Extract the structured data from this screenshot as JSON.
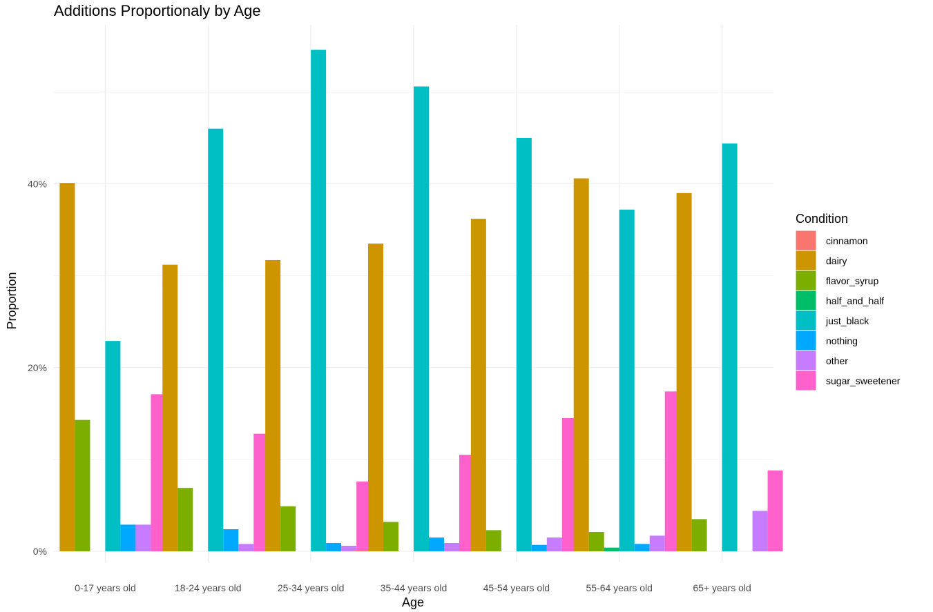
{
  "chart_data": {
    "type": "bar",
    "title": "Additions Proportionaly by Age",
    "xlabel": "Age",
    "ylabel": "Proportion",
    "ylim": [
      0,
      0.55
    ],
    "yticks": [
      0,
      0.2,
      0.4
    ],
    "ytick_labels": [
      "0%",
      "20%",
      "40%"
    ],
    "grid": true,
    "legend_title": "Condition",
    "legend_position": "right",
    "categories": [
      "0-17 years old",
      "18-24 years old",
      "25-34 years old",
      "35-44 years old",
      "45-54 years old",
      "55-64 years old",
      "65+ years old"
    ],
    "series": [
      {
        "name": "cinnamon",
        "color": "#F8766D",
        "values": [
          0,
          0,
          0,
          0.001,
          0,
          0,
          0
        ]
      },
      {
        "name": "dairy",
        "color": "#CD9600",
        "values": [
          0.401,
          0.312,
          0.317,
          0.335,
          0.362,
          0.406,
          0.39
        ]
      },
      {
        "name": "flavor_syrup",
        "color": "#7CAE00",
        "values": [
          0.143,
          0.069,
          0.049,
          0.032,
          0.023,
          0.021,
          0.035
        ]
      },
      {
        "name": "half_and_half",
        "color": "#00BE67",
        "values": [
          0,
          0,
          0,
          0,
          0,
          0.004,
          0
        ]
      },
      {
        "name": "just_black",
        "color": "#00BFC4",
        "values": [
          0.229,
          0.46,
          0.546,
          0.506,
          0.45,
          0.372,
          0.444
        ]
      },
      {
        "name": "nothing",
        "color": "#00A9FF",
        "values": [
          0.029,
          0.024,
          0.009,
          0.015,
          0.007,
          0.008,
          0
        ]
      },
      {
        "name": "other",
        "color": "#C77CFF",
        "values": [
          0.029,
          0.008,
          0.006,
          0.009,
          0.015,
          0.017,
          0.044
        ]
      },
      {
        "name": "sugar_sweetener",
        "color": "#FF61CC",
        "values": [
          0.171,
          0.128,
          0.076,
          0.105,
          0.145,
          0.174,
          0.088
        ]
      }
    ]
  }
}
